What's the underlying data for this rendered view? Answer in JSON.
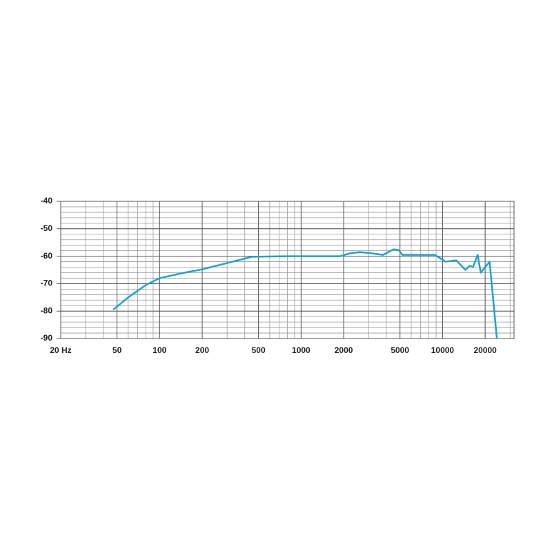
{
  "chart_data": {
    "type": "line",
    "log_x": true,
    "grid": true,
    "x": [
      47,
      60,
      80,
      100,
      150,
      200,
      300,
      450,
      800,
      1000,
      1900,
      2200,
      2600,
      3000,
      3800,
      4500,
      4900,
      5200,
      8000,
      8800,
      10500,
      12500,
      14500,
      15500,
      16400,
      17700,
      18600,
      21500,
      24200
    ],
    "series": [
      {
        "color": "#1ba1db",
        "values": [
          -79.5,
          -75,
          -70.5,
          -68,
          -66,
          -64.8,
          -62.5,
          -60.2,
          -60,
          -60,
          -60,
          -59,
          -58.5,
          -58.8,
          -59.5,
          -57.5,
          -57.8,
          -59.5,
          -59.5,
          -59.5,
          -62,
          -61.5,
          -65,
          -63.5,
          -64,
          -59.5,
          -66,
          -62,
          -90
        ]
      }
    ],
    "xlim": [
      20,
      32000
    ],
    "ylim": [
      -90,
      -40
    ],
    "xticks": [
      {
        "value": 20,
        "label": "20 Hz"
      },
      50,
      100,
      200,
      500,
      1000,
      2000,
      5000,
      10000,
      20000
    ],
    "yticks": [
      -40,
      -50,
      -60,
      -70,
      -80,
      -90
    ]
  }
}
